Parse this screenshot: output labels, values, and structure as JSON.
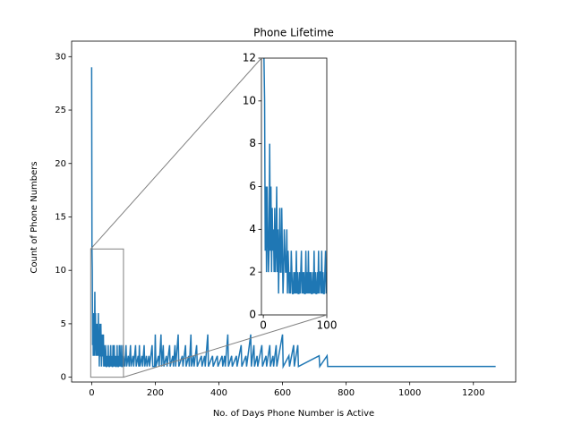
{
  "chart_data": {
    "type": "line",
    "title": "Phone Lifetime",
    "x_label": "No. of Days Phone Number is Active",
    "y_label": "Count of Phone Numbers",
    "xlim": [
      -63,
      1333
    ],
    "ylim": [
      -0.45,
      31.45
    ],
    "xticks": [
      0,
      200,
      400,
      600,
      800,
      1000,
      1200
    ],
    "yticks": [
      0,
      5,
      10,
      15,
      20,
      25,
      30
    ],
    "series": [
      {
        "color": "#1f77b4",
        "x": [
          0,
          1,
          2,
          3,
          4,
          5,
          6,
          7,
          8,
          9,
          10,
          11,
          12,
          13,
          14,
          15,
          16,
          17,
          18,
          19,
          20,
          21,
          22,
          23,
          24,
          25,
          26,
          27,
          28,
          29,
          30,
          31,
          32,
          33,
          34,
          35,
          36,
          37,
          38,
          39,
          40,
          41,
          42,
          43,
          44,
          45,
          46,
          47,
          48,
          49,
          50,
          51,
          52,
          53,
          54,
          55,
          56,
          57,
          58,
          59,
          60,
          61,
          62,
          63,
          64,
          65,
          66,
          67,
          68,
          69,
          70,
          71,
          72,
          73,
          74,
          75,
          76,
          77,
          78,
          79,
          80,
          81,
          82,
          83,
          84,
          85,
          86,
          87,
          88,
          89,
          90,
          91,
          92,
          93,
          94,
          95,
          96,
          97,
          98,
          99,
          100,
          104,
          108,
          110,
          115,
          118,
          122,
          124,
          130,
          132,
          138,
          140,
          146,
          148,
          150,
          152,
          158,
          160,
          165,
          167,
          172,
          174,
          180,
          182,
          190,
          192,
          198,
          200,
          202,
          210,
          212,
          218,
          220,
          225,
          227,
          235,
          237,
          245,
          247,
          255,
          257,
          262,
          264,
          272,
          274,
          285,
          287,
          295,
          297,
          305,
          307,
          312,
          314,
          320,
          322,
          330,
          332,
          345,
          347,
          355,
          357,
          365,
          367,
          380,
          382,
          395,
          397,
          410,
          412,
          418,
          420,
          428,
          430,
          440,
          442,
          455,
          457,
          470,
          472,
          485,
          487,
          500,
          502,
          510,
          512,
          520,
          522,
          535,
          537,
          548,
          550,
          560,
          562,
          570,
          572,
          580,
          582,
          600,
          602,
          620,
          622,
          635,
          637,
          648,
          650,
          715,
          717,
          740,
          742,
          1270
        ],
        "values": [
          29,
          12,
          10,
          3,
          6,
          2,
          6,
          4,
          2,
          3,
          8,
          3,
          6,
          2,
          5,
          3,
          4,
          2,
          5,
          2,
          3,
          6,
          2,
          4,
          1,
          3,
          5,
          2,
          2,
          5,
          3,
          1,
          2,
          4,
          3,
          2,
          2,
          4,
          1,
          3,
          2,
          1,
          2,
          1,
          3,
          2,
          1,
          1,
          2,
          1,
          2,
          1,
          3,
          1,
          2,
          1,
          1,
          2,
          1,
          2,
          3,
          1,
          2,
          1,
          2,
          1,
          1,
          3,
          1,
          2,
          1,
          3,
          1,
          2,
          1,
          2,
          1,
          1,
          2,
          1,
          3,
          1,
          2,
          1,
          1,
          2,
          1,
          3,
          1,
          2,
          2,
          1,
          3,
          1,
          2,
          1,
          1,
          2,
          3,
          1,
          2,
          1,
          3,
          1,
          2,
          1,
          3,
          1,
          2,
          1,
          3,
          1,
          2,
          1,
          3,
          1,
          2,
          1,
          3,
          1,
          2,
          1,
          2,
          1,
          3,
          1,
          1,
          4,
          1,
          2,
          1,
          4,
          1,
          3,
          1,
          2,
          1,
          3,
          1,
          2,
          1,
          3,
          1,
          4,
          1,
          2,
          1,
          3,
          1,
          2,
          1,
          4,
          1,
          2,
          1,
          3,
          1,
          2,
          1,
          2,
          1,
          4,
          1,
          2,
          1,
          2,
          1,
          2,
          1,
          2,
          1,
          4,
          1,
          2,
          1,
          2,
          1,
          3,
          1,
          2,
          1,
          4,
          1,
          3,
          1,
          2,
          1,
          3,
          1,
          2,
          1,
          3,
          1,
          2,
          1,
          3,
          1,
          4,
          1,
          2,
          1,
          3,
          1,
          3,
          1,
          2,
          1,
          2,
          1,
          1
        ]
      }
    ],
    "inset": {
      "xlim": [
        -3,
        100
      ],
      "ylim": [
        0,
        12
      ],
      "xticks": [
        0,
        100
      ],
      "yticks": [
        0,
        2,
        4,
        6,
        8,
        10,
        12
      ]
    }
  }
}
